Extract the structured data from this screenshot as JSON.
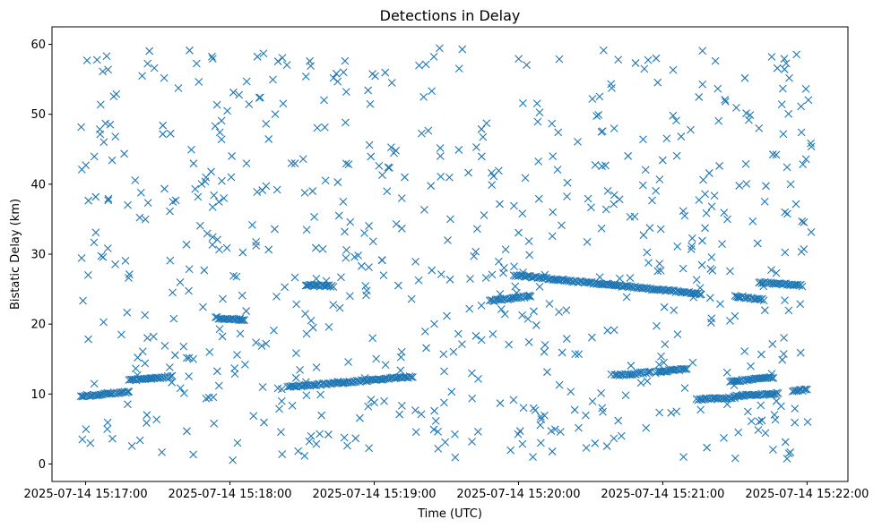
{
  "chart_data": {
    "type": "scatter",
    "title": "Detections in Delay",
    "xlabel": "Time (UTC)",
    "ylabel": "Bistatic Delay (km)",
    "marker": "x",
    "marker_color": "#1f77b4",
    "grid": false,
    "legend": "none",
    "x_ticks": [
      "2025-07-14 15:17:00",
      "2025-07-14 15:18:00",
      "2025-07-14 15:19:00",
      "2025-07-14 15:20:00",
      "2025-07-14 15:21:00",
      "2025-07-14 15:22:00"
    ],
    "y_ticks": [
      0,
      10,
      20,
      30,
      40,
      50,
      60
    ],
    "xlim": [
      "2025-07-14 15:16:46",
      "2025-07-14 15:22:17"
    ],
    "ylim": [
      -2.5,
      62.5
    ],
    "tracks": [
      {
        "t_start": "2025-07-14 15:16:58",
        "t_end": "2025-07-14 15:17:18",
        "delay_start": 9.7,
        "delay_end": 10.3
      },
      {
        "t_start": "2025-07-14 15:17:18",
        "t_end": "2025-07-14 15:17:36",
        "delay_start": 12.0,
        "delay_end": 12.5
      },
      {
        "t_start": "2025-07-14 15:17:54",
        "t_end": "2025-07-14 15:18:06",
        "delay_start": 20.9,
        "delay_end": 20.6
      },
      {
        "t_start": "2025-07-14 15:18:24",
        "t_end": "2025-07-14 15:19:16",
        "delay_start": 11.0,
        "delay_end": 12.5
      },
      {
        "t_start": "2025-07-14 15:18:32",
        "t_end": "2025-07-14 15:18:43",
        "delay_start": 25.6,
        "delay_end": 25.4
      },
      {
        "t_start": "2025-07-14 15:19:58",
        "t_end": "2025-07-14 15:21:16",
        "delay_start": 27.0,
        "delay_end": 24.3
      },
      {
        "t_start": "2025-07-14 15:19:48",
        "t_end": "2025-07-14 15:20:05",
        "delay_start": 23.3,
        "delay_end": 24.0
      },
      {
        "t_start": "2025-07-14 15:20:40",
        "t_end": "2025-07-14 15:20:55",
        "delay_start": 12.7,
        "delay_end": 13.1
      },
      {
        "t_start": "2025-07-14 15:20:57",
        "t_end": "2025-07-14 15:21:10",
        "delay_start": 13.1,
        "delay_end": 13.6
      },
      {
        "t_start": "2025-07-14 15:21:14",
        "t_end": "2025-07-14 15:21:30",
        "delay_start": 9.2,
        "delay_end": 9.5
      },
      {
        "t_start": "2025-07-14 15:21:28",
        "t_end": "2025-07-14 15:21:46",
        "delay_start": 11.8,
        "delay_end": 12.4
      },
      {
        "t_start": "2025-07-14 15:21:30",
        "t_end": "2025-07-14 15:21:42",
        "delay_start": 24.0,
        "delay_end": 23.5
      },
      {
        "t_start": "2025-07-14 15:21:30",
        "t_end": "2025-07-14 15:21:48",
        "delay_start": 9.7,
        "delay_end": 10.1
      },
      {
        "t_start": "2025-07-14 15:21:40",
        "t_end": "2025-07-14 15:21:58",
        "delay_start": 26.0,
        "delay_end": 25.5
      },
      {
        "t_start": "2025-07-14 15:21:54",
        "t_end": "2025-07-14 15:22:00",
        "delay_start": 10.4,
        "delay_end": 10.6
      }
    ],
    "random_detections": {
      "t_start": "2025-07-14 15:16:58",
      "t_end": "2025-07-14 15:22:02",
      "delay_min": 0.5,
      "delay_max": 59.7,
      "approx_count": 700
    }
  }
}
